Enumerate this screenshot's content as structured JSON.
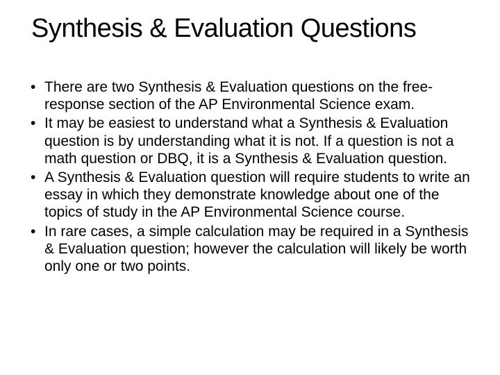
{
  "slide": {
    "title": "Synthesis & Evaluation Questions",
    "bullets": [
      "There are two Synthesis & Evaluation questions on the free-response section of the AP Environmental Science exam.",
      "It may be easiest to understand what a Synthesis & Evaluation question is by understanding what it is not. If a question is not a math question or DBQ, it is a Synthesis & Evaluation question.",
      "A Synthesis & Evaluation question will require students to write an essay in which they demonstrate knowledge about one of the topics of study in the AP Environmental Science course.",
      "In rare cases, a simple calculation may be required in a Synthesis & Evaluation question; however the calculation will likely be worth only one or two points."
    ]
  },
  "styling": {
    "background_color": "#ffffff",
    "text_color": "#000000",
    "title_fontsize": 38,
    "body_fontsize": 21,
    "font_family": "Arial"
  }
}
